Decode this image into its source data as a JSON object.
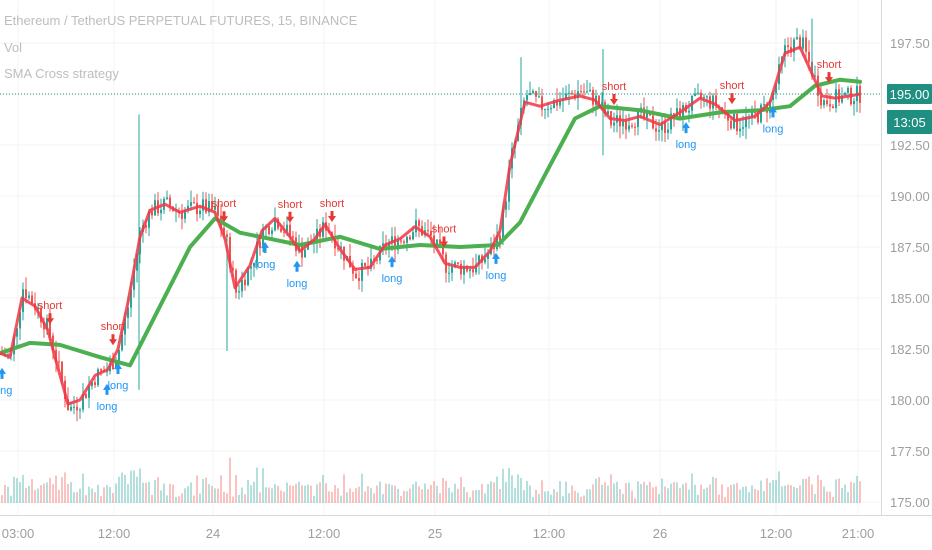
{
  "legend": {
    "symbol": "Ethereum / TetherUS PERPETUAL FUTURES, 15, BINANCE",
    "volume": "Vol",
    "strategy": "SMA Cross strategy"
  },
  "colors": {
    "up": "#26a69a",
    "down": "#ef5350",
    "sma_fast": "#f23645",
    "sma_slow": "#4caf50",
    "long": "#2196f3",
    "short": "#e53935",
    "last_price_bg": "#1e8f80"
  },
  "price_tag": {
    "price": "195.00",
    "countdown": "13:05"
  },
  "chart_data": {
    "type": "candlestick",
    "y_axis": {
      "range": [
        175.0,
        198.8
      ],
      "ticks": [
        "197.50",
        "195.00",
        "192.50",
        "190.00",
        "187.50",
        "185.00",
        "182.50",
        "180.00",
        "177.50",
        "175.00"
      ]
    },
    "x_axis": {
      "ticks": [
        "03:00",
        "12:00",
        "24",
        "12:00",
        "25",
        "12:00",
        "26",
        "12:00",
        "21:00"
      ]
    },
    "last_price": 195.0,
    "sma_slow": [
      [
        0,
        182.3
      ],
      [
        30,
        182.8
      ],
      [
        60,
        182.7
      ],
      [
        100,
        182.1
      ],
      [
        130,
        181.7
      ],
      [
        160,
        184.6
      ],
      [
        190,
        187.5
      ],
      [
        215,
        188.9
      ],
      [
        240,
        188.2
      ],
      [
        270,
        187.9
      ],
      [
        300,
        187.6
      ],
      [
        340,
        188.0
      ],
      [
        380,
        187.4
      ],
      [
        420,
        187.6
      ],
      [
        460,
        187.5
      ],
      [
        498,
        187.6
      ],
      [
        520,
        188.7
      ],
      [
        550,
        191.5
      ],
      [
        575,
        193.8
      ],
      [
        600,
        194.4
      ],
      [
        640,
        194.2
      ],
      [
        680,
        193.8
      ],
      [
        720,
        194.1
      ],
      [
        760,
        194.2
      ],
      [
        790,
        194.4
      ],
      [
        815,
        195.4
      ],
      [
        840,
        195.7
      ],
      [
        860,
        195.6
      ]
    ],
    "sma_fast": [
      [
        0,
        182.3
      ],
      [
        10,
        182.1
      ],
      [
        22,
        185.0
      ],
      [
        35,
        184.6
      ],
      [
        48,
        183.4
      ],
      [
        55,
        182.1
      ],
      [
        68,
        179.8
      ],
      [
        80,
        180.0
      ],
      [
        95,
        181.2
      ],
      [
        108,
        181.5
      ],
      [
        118,
        182.5
      ],
      [
        128,
        184.8
      ],
      [
        140,
        188.0
      ],
      [
        150,
        189.3
      ],
      [
        165,
        189.6
      ],
      [
        180,
        189.2
      ],
      [
        200,
        189.5
      ],
      [
        215,
        189.2
      ],
      [
        225,
        187.9
      ],
      [
        235,
        185.5
      ],
      [
        250,
        186.6
      ],
      [
        262,
        188.3
      ],
      [
        275,
        188.9
      ],
      [
        290,
        188.0
      ],
      [
        300,
        187.3
      ],
      [
        315,
        187.9
      ],
      [
        325,
        188.6
      ],
      [
        340,
        187.4
      ],
      [
        355,
        186.4
      ],
      [
        370,
        186.5
      ],
      [
        385,
        187.6
      ],
      [
        400,
        187.9
      ],
      [
        415,
        188.5
      ],
      [
        430,
        188.0
      ],
      [
        445,
        186.7
      ],
      [
        460,
        186.5
      ],
      [
        475,
        186.5
      ],
      [
        490,
        187.3
      ],
      [
        500,
        188.3
      ],
      [
        510,
        191.5
      ],
      [
        525,
        194.6
      ],
      [
        540,
        194.4
      ],
      [
        560,
        194.7
      ],
      [
        580,
        194.9
      ],
      [
        595,
        194.7
      ],
      [
        610,
        193.8
      ],
      [
        625,
        193.7
      ],
      [
        640,
        193.9
      ],
      [
        660,
        193.5
      ],
      [
        680,
        194.1
      ],
      [
        700,
        194.8
      ],
      [
        715,
        194.5
      ],
      [
        735,
        193.7
      ],
      [
        755,
        193.9
      ],
      [
        770,
        194.6
      ],
      [
        785,
        197.0
      ],
      [
        800,
        197.3
      ],
      [
        812,
        196.0
      ],
      [
        822,
        194.9
      ],
      [
        835,
        194.8
      ],
      [
        850,
        194.9
      ],
      [
        860,
        195.0
      ]
    ],
    "candle_path": [
      [
        0,
        182.3
      ],
      [
        10,
        182.1
      ],
      [
        22,
        185.5
      ],
      [
        35,
        184.6
      ],
      [
        48,
        183.4
      ],
      [
        55,
        182.1
      ],
      [
        68,
        179.5
      ],
      [
        80,
        180.0
      ],
      [
        95,
        181.2
      ],
      [
        108,
        181.5
      ],
      [
        118,
        182.5
      ],
      [
        128,
        184.8
      ],
      [
        140,
        188.4
      ],
      [
        150,
        189.3
      ],
      [
        165,
        189.6
      ],
      [
        180,
        189.2
      ],
      [
        200,
        189.5
      ],
      [
        215,
        189.2
      ],
      [
        225,
        187.9
      ],
      [
        235,
        185.3
      ],
      [
        250,
        186.6
      ],
      [
        262,
        188.3
      ],
      [
        275,
        188.9
      ],
      [
        290,
        188.0
      ],
      [
        300,
        187.3
      ],
      [
        315,
        187.9
      ],
      [
        325,
        188.6
      ],
      [
        340,
        187.4
      ],
      [
        355,
        186.2
      ],
      [
        370,
        186.5
      ],
      [
        385,
        187.6
      ],
      [
        400,
        187.9
      ],
      [
        415,
        188.5
      ],
      [
        430,
        188.0
      ],
      [
        445,
        186.6
      ],
      [
        460,
        186.5
      ],
      [
        475,
        186.5
      ],
      [
        490,
        187.3
      ],
      [
        500,
        188.3
      ],
      [
        510,
        191.8
      ],
      [
        525,
        195.0
      ],
      [
        540,
        194.4
      ],
      [
        560,
        194.7
      ],
      [
        580,
        195.2
      ],
      [
        595,
        194.7
      ],
      [
        610,
        193.6
      ],
      [
        625,
        193.7
      ],
      [
        640,
        193.9
      ],
      [
        660,
        193.3
      ],
      [
        680,
        194.1
      ],
      [
        700,
        194.8
      ],
      [
        715,
        194.5
      ],
      [
        735,
        193.5
      ],
      [
        755,
        193.9
      ],
      [
        770,
        194.6
      ],
      [
        785,
        197.3
      ],
      [
        800,
        197.6
      ],
      [
        812,
        196.0
      ],
      [
        822,
        194.6
      ],
      [
        835,
        194.8
      ],
      [
        850,
        194.9
      ],
      [
        860,
        195.0
      ]
    ],
    "signals": [
      {
        "type": "long",
        "x": 2,
        "label": "long"
      },
      {
        "type": "short",
        "x": 50,
        "label": "short"
      },
      {
        "type": "long",
        "x": 107,
        "label": "long"
      },
      {
        "type": "short",
        "x": 113,
        "label": "short"
      },
      {
        "type": "long",
        "x": 118,
        "label": "long"
      },
      {
        "type": "short",
        "x": 224,
        "label": "short"
      },
      {
        "type": "long",
        "x": 265,
        "label": "long"
      },
      {
        "type": "short",
        "x": 290,
        "label": "short"
      },
      {
        "type": "long",
        "x": 297,
        "label": "long"
      },
      {
        "type": "short",
        "x": 332,
        "label": "short"
      },
      {
        "type": "long",
        "x": 392,
        "label": "long"
      },
      {
        "type": "short",
        "x": 444,
        "label": "short"
      },
      {
        "type": "long",
        "x": 496,
        "label": "long"
      },
      {
        "type": "short",
        "x": 614,
        "label": "short"
      },
      {
        "type": "long",
        "x": 686,
        "label": "long"
      },
      {
        "type": "short",
        "x": 732,
        "label": "short"
      },
      {
        "type": "long",
        "x": 773,
        "label": "long"
      },
      {
        "type": "short",
        "x": 829,
        "label": "short"
      }
    ]
  }
}
